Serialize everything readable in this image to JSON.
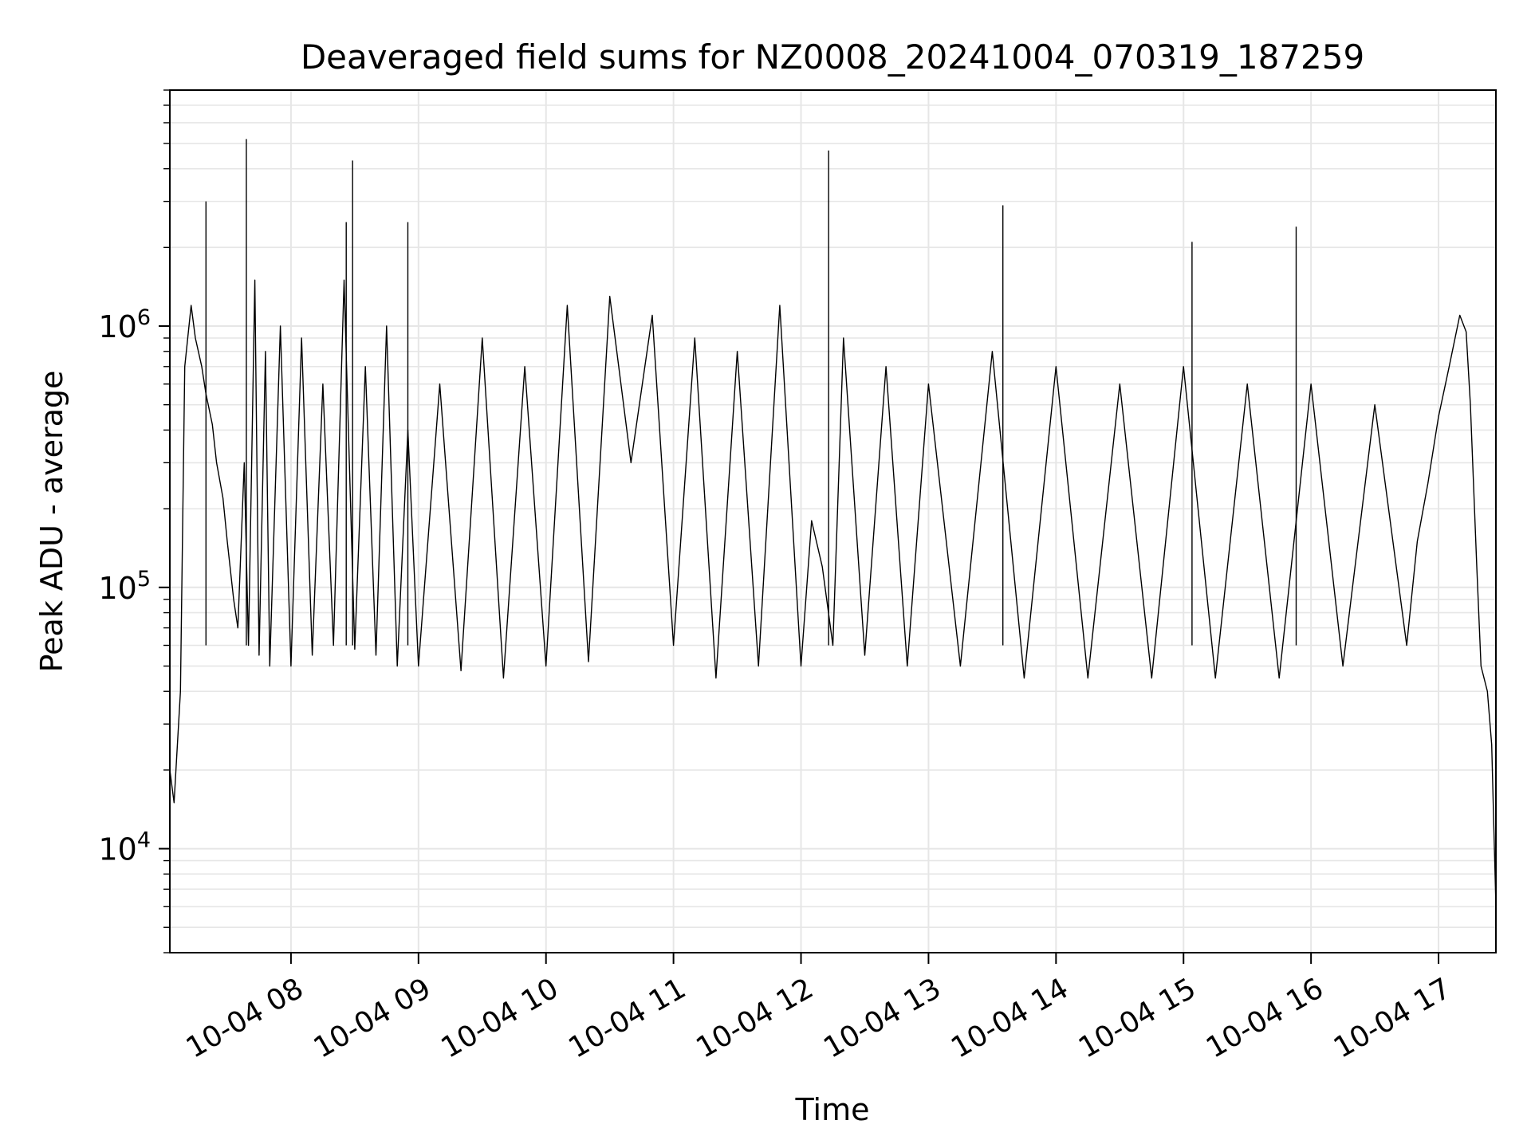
{
  "chart_data": {
    "type": "line",
    "title": "Deaveraged field sums for NZ0008_20241004_070319_187259",
    "xlabel": "Time",
    "ylabel": "Peak ADU - average",
    "yscale": "log",
    "xlim": [
      "2024-10-04 07:03",
      "2024-10-04 17:27"
    ],
    "ylim": [
      4000,
      8000000
    ],
    "grid": true,
    "legend": "none",
    "x_ticks": [
      {
        "t": "2024-10-04 08:00",
        "label": "10-04 08"
      },
      {
        "t": "2024-10-04 09:00",
        "label": "10-04 09"
      },
      {
        "t": "2024-10-04 10:00",
        "label": "10-04 10"
      },
      {
        "t": "2024-10-04 11:00",
        "label": "10-04 11"
      },
      {
        "t": "2024-10-04 12:00",
        "label": "10-04 12"
      },
      {
        "t": "2024-10-04 13:00",
        "label": "10-04 13"
      },
      {
        "t": "2024-10-04 14:00",
        "label": "10-04 14"
      },
      {
        "t": "2024-10-04 15:00",
        "label": "10-04 15"
      },
      {
        "t": "2024-10-04 16:00",
        "label": "10-04 16"
      },
      {
        "t": "2024-10-04 17:00",
        "label": "10-04 17"
      }
    ],
    "y_ticks": [
      {
        "v": 10000,
        "base": "10",
        "exp": "4"
      },
      {
        "v": 100000,
        "base": "10",
        "exp": "5"
      },
      {
        "v": 1000000,
        "base": "10",
        "exp": "6"
      }
    ],
    "line_color": "#000000",
    "series": [
      {
        "x": [
          "2024-10-04 07:03",
          "2024-10-04 07:05",
          "2024-10-04 07:08",
          "2024-10-04 07:10",
          "2024-10-04 07:13",
          "2024-10-04 07:15",
          "2024-10-04 07:18",
          "2024-10-04 07:20",
          "2024-10-04 07:23",
          "2024-10-04 07:25",
          "2024-10-04 07:28",
          "2024-10-04 07:30",
          "2024-10-04 07:33",
          "2024-10-04 07:35",
          "2024-10-04 07:38",
          "2024-10-04 07:40",
          "2024-10-04 07:43",
          "2024-10-04 07:45",
          "2024-10-04 07:48",
          "2024-10-04 07:50",
          "2024-10-04 07:55",
          "2024-10-04 08:00",
          "2024-10-04 08:05",
          "2024-10-04 08:10",
          "2024-10-04 08:15",
          "2024-10-04 08:20",
          "2024-10-04 08:25",
          "2024-10-04 08:30",
          "2024-10-04 08:35",
          "2024-10-04 08:40",
          "2024-10-04 08:45",
          "2024-10-04 08:50",
          "2024-10-04 08:55",
          "2024-10-04 09:00",
          "2024-10-04 09:10",
          "2024-10-04 09:20",
          "2024-10-04 09:30",
          "2024-10-04 09:40",
          "2024-10-04 09:50",
          "2024-10-04 10:00",
          "2024-10-04 10:10",
          "2024-10-04 10:20",
          "2024-10-04 10:30",
          "2024-10-04 10:40",
          "2024-10-04 10:50",
          "2024-10-04 11:00",
          "2024-10-04 11:10",
          "2024-10-04 11:20",
          "2024-10-04 11:30",
          "2024-10-04 11:40",
          "2024-10-04 11:50",
          "2024-10-04 12:00",
          "2024-10-04 12:05",
          "2024-10-04 12:10",
          "2024-10-04 12:15",
          "2024-10-04 12:20",
          "2024-10-04 12:30",
          "2024-10-04 12:40",
          "2024-10-04 12:50",
          "2024-10-04 13:00",
          "2024-10-04 13:15",
          "2024-10-04 13:30",
          "2024-10-04 13:45",
          "2024-10-04 14:00",
          "2024-10-04 14:15",
          "2024-10-04 14:30",
          "2024-10-04 14:45",
          "2024-10-04 15:00",
          "2024-10-04 15:15",
          "2024-10-04 15:30",
          "2024-10-04 15:45",
          "2024-10-04 16:00",
          "2024-10-04 16:15",
          "2024-10-04 16:30",
          "2024-10-04 16:45",
          "2024-10-04 16:50",
          "2024-10-04 16:55",
          "2024-10-04 17:00",
          "2024-10-04 17:05",
          "2024-10-04 17:10",
          "2024-10-04 17:13",
          "2024-10-04 17:15",
          "2024-10-04 17:18",
          "2024-10-04 17:20",
          "2024-10-04 17:23",
          "2024-10-04 17:25",
          "2024-10-04 17:27"
        ],
        "y": [
          20000,
          15000,
          40000,
          700000,
          1200000,
          900000,
          700000,
          550000,
          420000,
          300000,
          220000,
          150000,
          90000,
          70000,
          300000,
          60000,
          1500000,
          55000,
          800000,
          50000,
          1000000,
          50000,
          900000,
          55000,
          600000,
          60000,
          1500000,
          58000,
          700000,
          55000,
          1000000,
          50000,
          400000,
          50000,
          600000,
          48000,
          900000,
          45000,
          700000,
          50000,
          1200000,
          52000,
          1300000,
          300000,
          1100000,
          60000,
          900000,
          45000,
          800000,
          50000,
          1200000,
          50000,
          180000,
          120000,
          60000,
          900000,
          55000,
          700000,
          50000,
          600000,
          50000,
          800000,
          45000,
          700000,
          45000,
          600000,
          45000,
          700000,
          45000,
          600000,
          45000,
          600000,
          50000,
          500000,
          60000,
          150000,
          250000,
          450000,
          700000,
          1100000,
          950000,
          500000,
          120000,
          50000,
          40000,
          25000,
          6000
        ]
      }
    ],
    "spikes": [
      {
        "x": "2024-10-04 07:20",
        "y": 3000000
      },
      {
        "x": "2024-10-04 07:39",
        "y": 5200000
      },
      {
        "x": "2024-10-04 08:29",
        "y": 4300000
      },
      {
        "x": "2024-10-04 08:26",
        "y": 2500000
      },
      {
        "x": "2024-10-04 08:55",
        "y": 2500000
      },
      {
        "x": "2024-10-04 12:13",
        "y": 4700000
      },
      {
        "x": "2024-10-04 13:35",
        "y": 2900000
      },
      {
        "x": "2024-10-04 15:04",
        "y": 2100000
      },
      {
        "x": "2024-10-04 15:53",
        "y": 2400000
      }
    ]
  }
}
